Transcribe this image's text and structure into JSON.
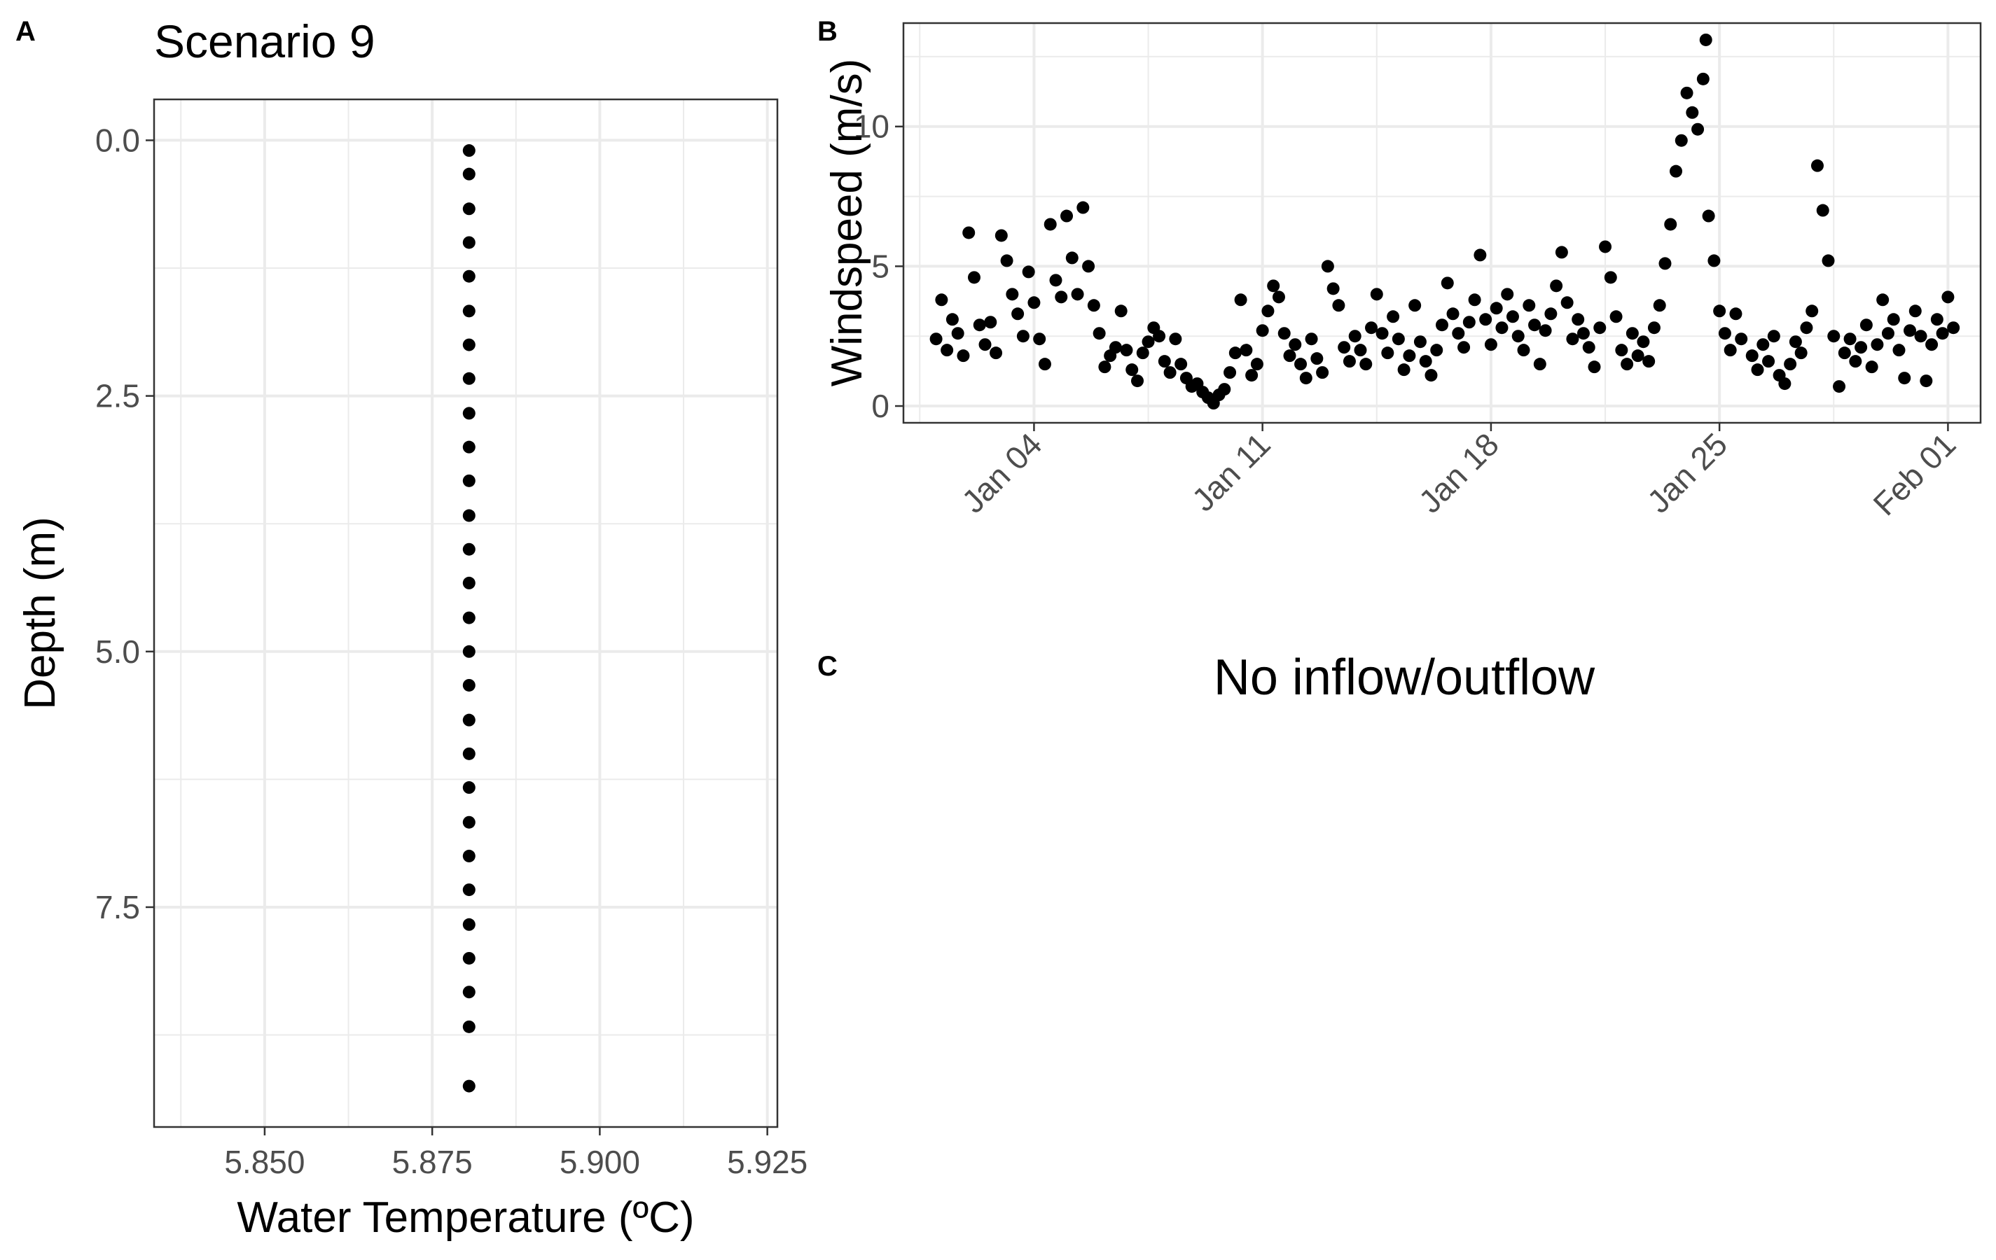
{
  "panels": {
    "a": {
      "tag": "A"
    },
    "b": {
      "tag": "B"
    },
    "c": {
      "tag": "C",
      "text": "No inflow/outflow"
    }
  },
  "chart_data": [
    {
      "id": "A",
      "type": "scatter",
      "title": "Scenario 9",
      "xlabel": "Water Temperature (ºC)",
      "ylabel": "Depth (m)",
      "xlim": [
        5.8335,
        5.9265
      ],
      "ylim": [
        -0.4,
        9.65
      ],
      "y_reversed": true,
      "xticks": [
        5.85,
        5.875,
        5.9,
        5.925
      ],
      "xtick_labels": [
        "5.850",
        "5.875",
        "5.900",
        "5.925"
      ],
      "yticks": [
        0,
        2.5,
        5,
        7.5
      ],
      "ytick_labels": [
        "0.0",
        "2.5",
        "5.0",
        "7.5"
      ],
      "grid": true,
      "marker_color": "#000000",
      "x": [
        5.8805,
        5.8805,
        5.8805,
        5.8805,
        5.8805,
        5.8805,
        5.8805,
        5.8805,
        5.8805,
        5.8805,
        5.8805,
        5.8805,
        5.8805,
        5.8805,
        5.8805,
        5.8805,
        5.8805,
        5.8805,
        5.8805,
        5.8805,
        5.8805,
        5.8805,
        5.8805,
        5.8805,
        5.8805,
        5.8805,
        5.8805,
        5.8805
      ],
      "y": [
        0.1,
        0.33,
        0.67,
        1.0,
        1.33,
        1.67,
        2.0,
        2.33,
        2.67,
        3.0,
        3.33,
        3.67,
        4.0,
        4.33,
        4.67,
        5.0,
        5.33,
        5.67,
        6.0,
        6.33,
        6.67,
        7.0,
        7.33,
        7.67,
        8.0,
        8.33,
        8.67,
        9.25
      ]
    },
    {
      "id": "B",
      "type": "scatter",
      "title": "",
      "xlabel": "",
      "ylabel": "Windspeed (m/s)",
      "x_is_date": true,
      "xlim": [
        "2019-12-31",
        "2020-02-02"
      ],
      "ylim": [
        -0.6,
        13.7
      ],
      "xticks": [
        "2020-01-04",
        "2020-01-11",
        "2020-01-18",
        "2020-01-25",
        "2020-02-01"
      ],
      "xtick_labels": [
        "Jan 04",
        "Jan 11",
        "Jan 18",
        "Jan 25",
        "Feb 01"
      ],
      "yticks": [
        0,
        5,
        10
      ],
      "ytick_labels": [
        "0",
        "5",
        "10"
      ],
      "grid": true,
      "marker_color": "#000000",
      "points": [
        [
          "2020-01-01T00:00",
          2.4
        ],
        [
          "2020-01-01T04:00",
          3.8
        ],
        [
          "2020-01-01T08:00",
          2.0
        ],
        [
          "2020-01-01T12:00",
          3.1
        ],
        [
          "2020-01-01T16:00",
          2.6
        ],
        [
          "2020-01-01T20:00",
          1.8
        ],
        [
          "2020-01-02T00:00",
          6.2
        ],
        [
          "2020-01-02T04:00",
          4.6
        ],
        [
          "2020-01-02T08:00",
          2.9
        ],
        [
          "2020-01-02T12:00",
          2.2
        ],
        [
          "2020-01-02T16:00",
          3.0
        ],
        [
          "2020-01-02T20:00",
          1.9
        ],
        [
          "2020-01-03T00:00",
          6.1
        ],
        [
          "2020-01-03T04:00",
          5.2
        ],
        [
          "2020-01-03T08:00",
          4.0
        ],
        [
          "2020-01-03T12:00",
          3.3
        ],
        [
          "2020-01-03T16:00",
          2.5
        ],
        [
          "2020-01-03T20:00",
          4.8
        ],
        [
          "2020-01-04T00:00",
          3.7
        ],
        [
          "2020-01-04T04:00",
          2.4
        ],
        [
          "2020-01-04T08:00",
          1.5
        ],
        [
          "2020-01-04T12:00",
          6.5
        ],
        [
          "2020-01-04T16:00",
          4.5
        ],
        [
          "2020-01-04T20:00",
          3.9
        ],
        [
          "2020-01-05T00:00",
          6.8
        ],
        [
          "2020-01-05T04:00",
          5.3
        ],
        [
          "2020-01-05T08:00",
          4.0
        ],
        [
          "2020-01-05T12:00",
          7.1
        ],
        [
          "2020-01-05T16:00",
          5.0
        ],
        [
          "2020-01-05T20:00",
          3.6
        ],
        [
          "2020-01-06T00:00",
          2.6
        ],
        [
          "2020-01-06T04:00",
          1.4
        ],
        [
          "2020-01-06T08:00",
          1.8
        ],
        [
          "2020-01-06T12:00",
          2.1
        ],
        [
          "2020-01-06T16:00",
          3.4
        ],
        [
          "2020-01-06T20:00",
          2.0
        ],
        [
          "2020-01-07T00:00",
          1.3
        ],
        [
          "2020-01-07T04:00",
          0.9
        ],
        [
          "2020-01-07T08:00",
          1.9
        ],
        [
          "2020-01-07T12:00",
          2.3
        ],
        [
          "2020-01-07T16:00",
          2.8
        ],
        [
          "2020-01-07T20:00",
          2.5
        ],
        [
          "2020-01-08T00:00",
          1.6
        ],
        [
          "2020-01-08T04:00",
          1.2
        ],
        [
          "2020-01-08T08:00",
          2.4
        ],
        [
          "2020-01-08T12:00",
          1.5
        ],
        [
          "2020-01-08T16:00",
          1.0
        ],
        [
          "2020-01-08T20:00",
          0.7
        ],
        [
          "2020-01-09T00:00",
          0.8
        ],
        [
          "2020-01-09T04:00",
          0.5
        ],
        [
          "2020-01-09T08:00",
          0.3
        ],
        [
          "2020-01-09T12:00",
          0.1
        ],
        [
          "2020-01-09T16:00",
          0.4
        ],
        [
          "2020-01-09T20:00",
          0.6
        ],
        [
          "2020-01-10T00:00",
          1.2
        ],
        [
          "2020-01-10T04:00",
          1.9
        ],
        [
          "2020-01-10T08:00",
          3.8
        ],
        [
          "2020-01-10T12:00",
          2.0
        ],
        [
          "2020-01-10T16:00",
          1.1
        ],
        [
          "2020-01-10T20:00",
          1.5
        ],
        [
          "2020-01-11T00:00",
          2.7
        ],
        [
          "2020-01-11T04:00",
          3.4
        ],
        [
          "2020-01-11T08:00",
          4.3
        ],
        [
          "2020-01-11T12:00",
          3.9
        ],
        [
          "2020-01-11T16:00",
          2.6
        ],
        [
          "2020-01-11T20:00",
          1.8
        ],
        [
          "2020-01-12T00:00",
          2.2
        ],
        [
          "2020-01-12T04:00",
          1.5
        ],
        [
          "2020-01-12T08:00",
          1.0
        ],
        [
          "2020-01-12T12:00",
          2.4
        ],
        [
          "2020-01-12T16:00",
          1.7
        ],
        [
          "2020-01-12T20:00",
          1.2
        ],
        [
          "2020-01-13T00:00",
          5.0
        ],
        [
          "2020-01-13T04:00",
          4.2
        ],
        [
          "2020-01-13T08:00",
          3.6
        ],
        [
          "2020-01-13T12:00",
          2.1
        ],
        [
          "2020-01-13T16:00",
          1.6
        ],
        [
          "2020-01-13T20:00",
          2.5
        ],
        [
          "2020-01-14T00:00",
          2.0
        ],
        [
          "2020-01-14T04:00",
          1.5
        ],
        [
          "2020-01-14T08:00",
          2.8
        ],
        [
          "2020-01-14T12:00",
          4.0
        ],
        [
          "2020-01-14T16:00",
          2.6
        ],
        [
          "2020-01-14T20:00",
          1.9
        ],
        [
          "2020-01-15T00:00",
          3.2
        ],
        [
          "2020-01-15T04:00",
          2.4
        ],
        [
          "2020-01-15T08:00",
          1.3
        ],
        [
          "2020-01-15T12:00",
          1.8
        ],
        [
          "2020-01-15T16:00",
          3.6
        ],
        [
          "2020-01-15T20:00",
          2.3
        ],
        [
          "2020-01-16T00:00",
          1.6
        ],
        [
          "2020-01-16T04:00",
          1.1
        ],
        [
          "2020-01-16T08:00",
          2.0
        ],
        [
          "2020-01-16T12:00",
          2.9
        ],
        [
          "2020-01-16T16:00",
          4.4
        ],
        [
          "2020-01-16T20:00",
          3.3
        ],
        [
          "2020-01-17T00:00",
          2.6
        ],
        [
          "2020-01-17T04:00",
          2.1
        ],
        [
          "2020-01-17T08:00",
          3.0
        ],
        [
          "2020-01-17T12:00",
          3.8
        ],
        [
          "2020-01-17T16:00",
          5.4
        ],
        [
          "2020-01-17T20:00",
          3.1
        ],
        [
          "2020-01-18T00:00",
          2.2
        ],
        [
          "2020-01-18T04:00",
          3.5
        ],
        [
          "2020-01-18T08:00",
          2.8
        ],
        [
          "2020-01-18T12:00",
          4.0
        ],
        [
          "2020-01-18T16:00",
          3.2
        ],
        [
          "2020-01-18T20:00",
          2.5
        ],
        [
          "2020-01-19T00:00",
          2.0
        ],
        [
          "2020-01-19T04:00",
          3.6
        ],
        [
          "2020-01-19T08:00",
          2.9
        ],
        [
          "2020-01-19T12:00",
          1.5
        ],
        [
          "2020-01-19T16:00",
          2.7
        ],
        [
          "2020-01-19T20:00",
          3.3
        ],
        [
          "2020-01-20T00:00",
          4.3
        ],
        [
          "2020-01-20T04:00",
          5.5
        ],
        [
          "2020-01-20T08:00",
          3.7
        ],
        [
          "2020-01-20T12:00",
          2.4
        ],
        [
          "2020-01-20T16:00",
          3.1
        ],
        [
          "2020-01-20T20:00",
          2.6
        ],
        [
          "2020-01-21T00:00",
          2.1
        ],
        [
          "2020-01-21T04:00",
          1.4
        ],
        [
          "2020-01-21T08:00",
          2.8
        ],
        [
          "2020-01-21T12:00",
          5.7
        ],
        [
          "2020-01-21T16:00",
          4.6
        ],
        [
          "2020-01-21T20:00",
          3.2
        ],
        [
          "2020-01-22T00:00",
          2.0
        ],
        [
          "2020-01-22T04:00",
          1.5
        ],
        [
          "2020-01-22T08:00",
          2.6
        ],
        [
          "2020-01-22T12:00",
          1.8
        ],
        [
          "2020-01-22T16:00",
          2.3
        ],
        [
          "2020-01-22T20:00",
          1.6
        ],
        [
          "2020-01-23T00:00",
          2.8
        ],
        [
          "2020-01-23T04:00",
          3.6
        ],
        [
          "2020-01-23T08:00",
          5.1
        ],
        [
          "2020-01-23T12:00",
          6.5
        ],
        [
          "2020-01-23T16:00",
          8.4
        ],
        [
          "2020-01-23T20:00",
          9.5
        ],
        [
          "2020-01-24T00:00",
          11.2
        ],
        [
          "2020-01-24T04:00",
          10.5
        ],
        [
          "2020-01-24T08:00",
          9.9
        ],
        [
          "2020-01-24T12:00",
          11.7
        ],
        [
          "2020-01-24T14:00",
          13.1
        ],
        [
          "2020-01-24T16:00",
          6.8
        ],
        [
          "2020-01-24T20:00",
          5.2
        ],
        [
          "2020-01-25T00:00",
          3.4
        ],
        [
          "2020-01-25T04:00",
          2.6
        ],
        [
          "2020-01-25T08:00",
          2.0
        ],
        [
          "2020-01-25T12:00",
          3.3
        ],
        [
          "2020-01-25T16:00",
          2.4
        ],
        [
          "2020-01-26T00:00",
          1.8
        ],
        [
          "2020-01-26T04:00",
          1.3
        ],
        [
          "2020-01-26T08:00",
          2.2
        ],
        [
          "2020-01-26T12:00",
          1.6
        ],
        [
          "2020-01-26T16:00",
          2.5
        ],
        [
          "2020-01-26T20:00",
          1.1
        ],
        [
          "2020-01-27T00:00",
          0.8
        ],
        [
          "2020-01-27T04:00",
          1.5
        ],
        [
          "2020-01-27T08:00",
          2.3
        ],
        [
          "2020-01-27T12:00",
          1.9
        ],
        [
          "2020-01-27T16:00",
          2.8
        ],
        [
          "2020-01-27T20:00",
          3.4
        ],
        [
          "2020-01-28T00:00",
          8.6
        ],
        [
          "2020-01-28T04:00",
          7.0
        ],
        [
          "2020-01-28T08:00",
          5.2
        ],
        [
          "2020-01-28T12:00",
          2.5
        ],
        [
          "2020-01-28T16:00",
          0.7
        ],
        [
          "2020-01-28T20:00",
          1.9
        ],
        [
          "2020-01-29T00:00",
          2.4
        ],
        [
          "2020-01-29T04:00",
          1.6
        ],
        [
          "2020-01-29T08:00",
          2.1
        ],
        [
          "2020-01-29T12:00",
          2.9
        ],
        [
          "2020-01-29T16:00",
          1.4
        ],
        [
          "2020-01-29T20:00",
          2.2
        ],
        [
          "2020-01-30T00:00",
          3.8
        ],
        [
          "2020-01-30T04:00",
          2.6
        ],
        [
          "2020-01-30T08:00",
          3.1
        ],
        [
          "2020-01-30T12:00",
          2.0
        ],
        [
          "2020-01-30T16:00",
          1.0
        ],
        [
          "2020-01-30T20:00",
          2.7
        ],
        [
          "2020-01-31T00:00",
          3.4
        ],
        [
          "2020-01-31T04:00",
          2.5
        ],
        [
          "2020-01-31T08:00",
          0.9
        ],
        [
          "2020-01-31T12:00",
          2.2
        ],
        [
          "2020-01-31T16:00",
          3.1
        ],
        [
          "2020-01-31T20:00",
          2.6
        ],
        [
          "2020-02-01T00:00",
          3.9
        ],
        [
          "2020-02-01T04:00",
          2.8
        ]
      ]
    }
  ]
}
